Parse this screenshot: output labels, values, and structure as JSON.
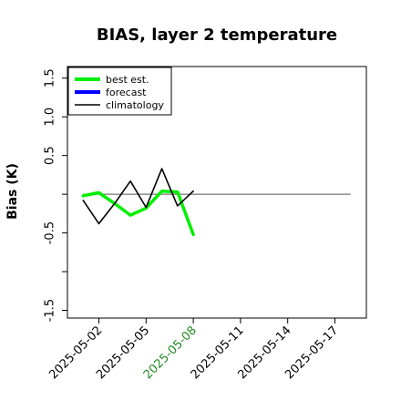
{
  "chart_data": {
    "type": "line",
    "title": "BIAS, layer 2 temperature",
    "xlabel": "",
    "ylabel": "Bias (K)",
    "xlim": [
      "2025-04-30",
      "2025-05-19"
    ],
    "ylim": [
      -1.6,
      1.65
    ],
    "yticks": [
      -1.5,
      -1.0,
      -0.5,
      0.0,
      0.5,
      1.0,
      1.5
    ],
    "ytick_labels": [
      "-1.5",
      "",
      "-0.5",
      "",
      "0.5",
      "1.0",
      "1.5"
    ],
    "xticks": [
      "2025-05-02",
      "2025-05-05",
      "2025-05-08",
      "2025-05-11",
      "2025-05-14",
      "2025-05-17"
    ],
    "highlight_tick": "2025-05-08",
    "highlight_color": "#228B22",
    "zero_line": {
      "from": "2025-05-01",
      "to": "2025-05-18",
      "y": 0
    },
    "grid": false,
    "legend_position": "top-left",
    "series": [
      {
        "name": "best est.",
        "color": "#00ee00",
        "x": [
          "2025-05-01",
          "2025-05-02",
          "2025-05-03",
          "2025-05-04",
          "2025-05-05",
          "2025-05-06",
          "2025-05-07",
          "2025-05-08"
        ],
        "y": [
          -0.02,
          0.02,
          -0.12,
          -0.27,
          -0.18,
          0.04,
          0.03,
          -0.52
        ]
      },
      {
        "name": "forecast",
        "color": "#0000ff",
        "x": [],
        "y": []
      },
      {
        "name": "climatology",
        "color": "#000000",
        "x": [
          "2025-05-01",
          "2025-05-02",
          "2025-05-03",
          "2025-05-04",
          "2025-05-05",
          "2025-05-06",
          "2025-05-07",
          "2025-05-08"
        ],
        "y": [
          -0.08,
          -0.38,
          -0.12,
          0.17,
          -0.17,
          0.33,
          -0.15,
          0.04
        ]
      }
    ]
  }
}
